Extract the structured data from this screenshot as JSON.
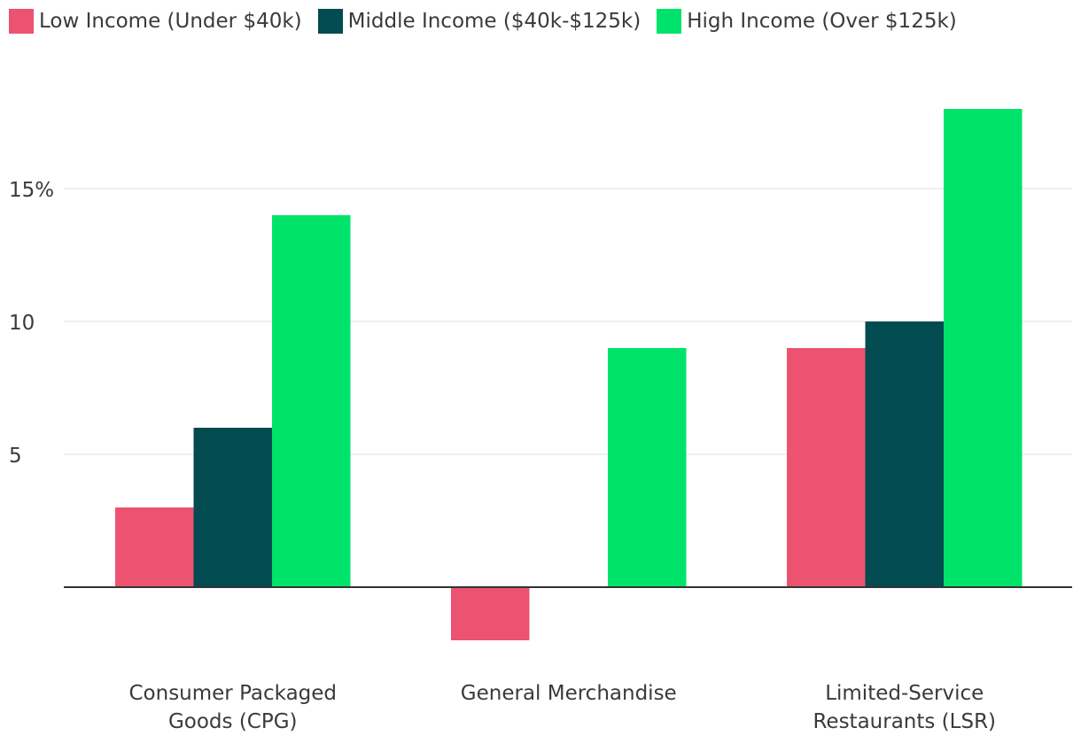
{
  "chart_data": {
    "type": "bar",
    "categories": [
      [
        "Consumer Packaged",
        "Goods (CPG)"
      ],
      [
        "General Merchandise"
      ],
      [
        "Limited-Service",
        "Restaurants (LSR)"
      ]
    ],
    "series": [
      {
        "name": "Low Income (Under $40k)",
        "color": "#ec5370",
        "values": [
          3,
          -2,
          9
        ]
      },
      {
        "name": "Middle Income ($40k-$125k)",
        "color": "#024b50",
        "values": [
          6,
          0,
          10
        ]
      },
      {
        "name": "High Income (Over $125k)",
        "color": "#00e36b",
        "values": [
          14,
          9,
          18
        ]
      }
    ],
    "yticks": [
      {
        "value": 5,
        "label": "5"
      },
      {
        "value": 10,
        "label": "10"
      },
      {
        "value": 15,
        "label": "15%"
      }
    ],
    "ylim": [
      -3,
      19
    ],
    "grid": true,
    "legend": "top-left"
  }
}
